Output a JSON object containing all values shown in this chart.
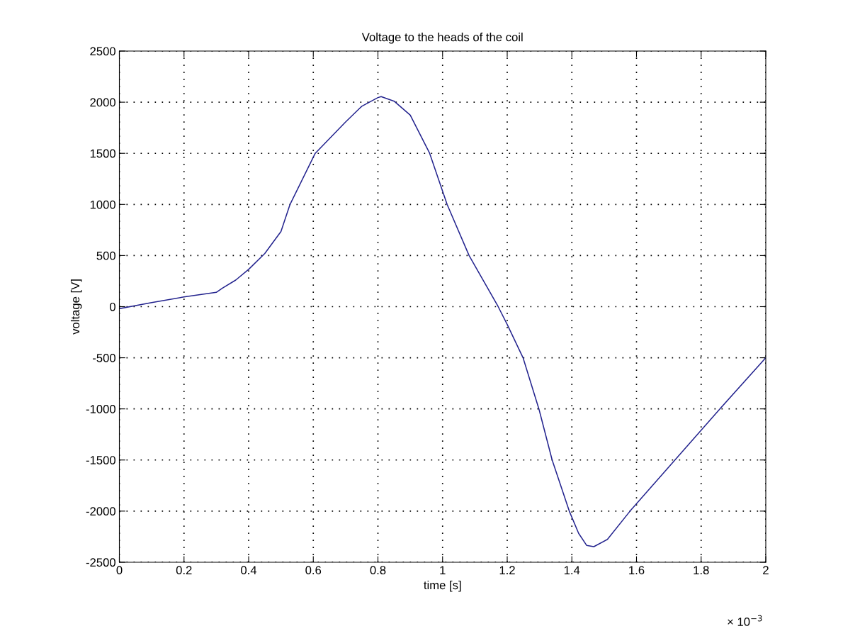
{
  "chart_data": {
    "type": "line",
    "title": "Voltage to the heads of the coil",
    "xlabel": "time [s]",
    "ylabel": "voltage [V]",
    "annotations": [
      "× 10$^{−3}$"
    ],
    "series": [
      {
        "color": "#23238e",
        "x": [
          0,
          0.1,
          0.2,
          0.3,
          0.318,
          0.36,
          0.4,
          0.45,
          0.5,
          0.528,
          0.606,
          0.7,
          0.75,
          0.8,
          0.81,
          0.85,
          0.9,
          0.96,
          1.014,
          1.082,
          1.172,
          1.2,
          1.249,
          1.298,
          1.339,
          1.392,
          1.421,
          1.446,
          1.468,
          1.51,
          1.58,
          1.719,
          1.858,
          2
        ],
        "values": [
          -20,
          40,
          95,
          140,
          180,
          260,
          365,
          520,
          735,
          1000,
          1500,
          1807,
          1960,
          2045,
          2055,
          2010,
          1873,
          1500,
          1000,
          500,
          0,
          -174,
          -500,
          -1000,
          -1500,
          -2000,
          -2218,
          -2336,
          -2348,
          -2277,
          -2000,
          -1500,
          -1000,
          -500
        ]
      }
    ],
    "xlim": [
      0,
      2
    ],
    "ylim": [
      -2500,
      2500
    ],
    "xticks": [
      0,
      0.2,
      0.4,
      0.6,
      0.8,
      1,
      1.2,
      1.4,
      1.6,
      1.8,
      2
    ],
    "yticks": [
      -2500,
      -2000,
      -1500,
      -1000,
      -500,
      0,
      500,
      1000,
      1500,
      2000,
      2500
    ],
    "grid": true,
    "line_style": "solid",
    "marker": "none"
  }
}
